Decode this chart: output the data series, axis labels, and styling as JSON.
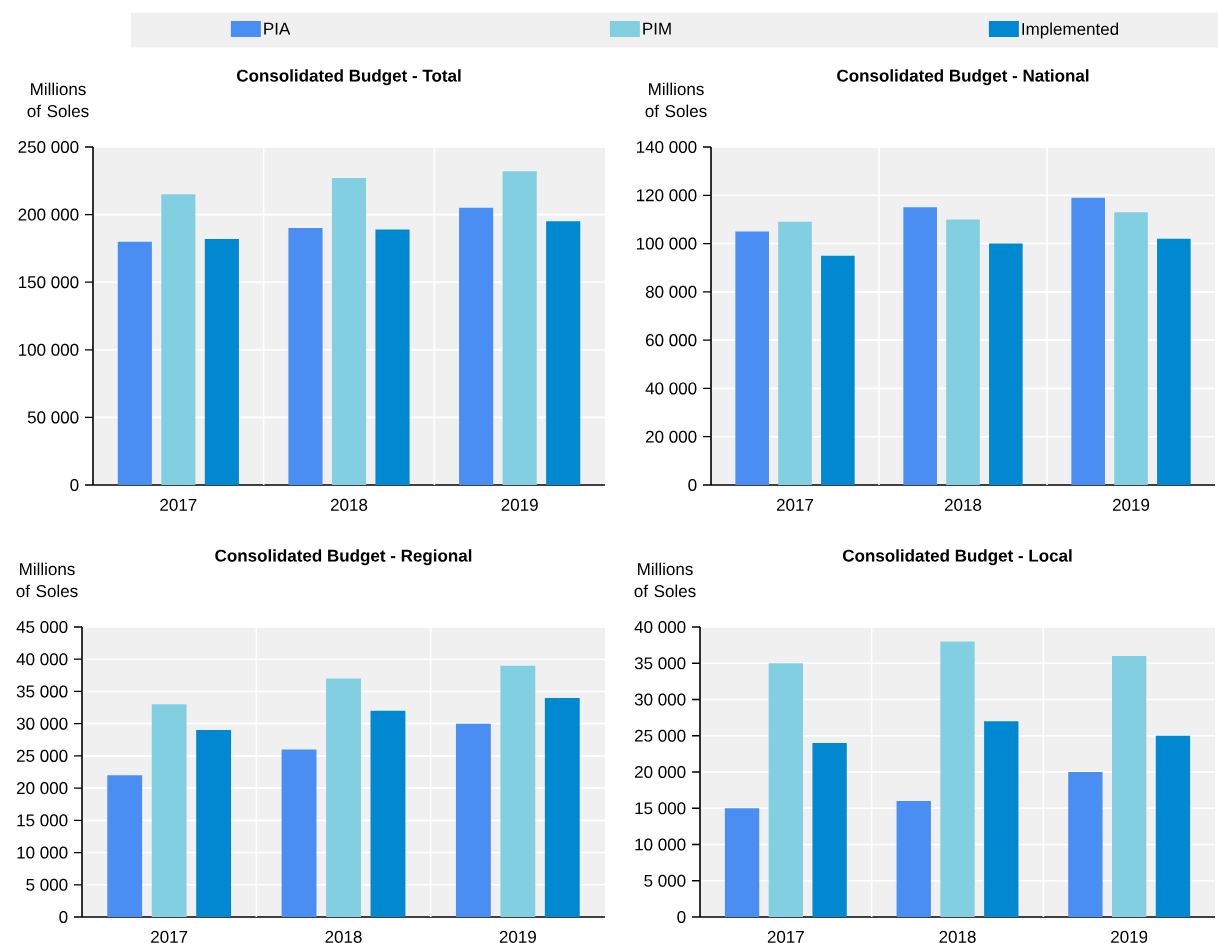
{
  "chart_data": [
    {
      "type": "bar",
      "title": "Consolidated Budget - Total",
      "ylabel": "Millions of Soles",
      "categories": [
        "2017",
        "2018",
        "2019"
      ],
      "series": [
        {
          "name": "PIA",
          "color": "#4a8ef4",
          "values": [
            180000,
            190000,
            205000
          ]
        },
        {
          "name": "PIM",
          "color": "#83cfe2",
          "values": [
            215000,
            227000,
            232000
          ]
        },
        {
          "name": "Implemented",
          "color": "#0088d1",
          "values": [
            182000,
            189000,
            195000
          ]
        }
      ],
      "ylim": [
        0,
        250000
      ],
      "yticks": [
        0,
        {
          "value": 50000,
          "label": "50 000"
        },
        {
          "value": 100000,
          "label": "100 000"
        },
        {
          "value": 150000,
          "label": "150 000"
        },
        {
          "value": 200000,
          "label": "200 000"
        },
        {
          "value": 250000,
          "label": "250 000"
        }
      ],
      "grid": "y",
      "legend": "top"
    },
    {
      "type": "bar",
      "title": "Consolidated Budget - National",
      "ylabel": "Millions of Soles",
      "categories": [
        "2017",
        "2018",
        "2019"
      ],
      "series": [
        {
          "color": "#4a8ef4",
          "values": [
            105000,
            115000,
            119000
          ]
        },
        {
          "color": "#83cfe2",
          "values": [
            109000,
            110000,
            113000
          ]
        },
        {
          "color": "#0088d1",
          "values": [
            95000,
            100000,
            102000
          ]
        }
      ],
      "ylim": [
        0,
        140000
      ],
      "yticks": [
        0,
        {
          "value": 20000,
          "label": "20 000"
        },
        {
          "value": 40000,
          "label": "40 000"
        },
        {
          "value": 60000,
          "label": "60 000"
        },
        {
          "value": 80000,
          "label": "80 000"
        },
        {
          "value": 100000,
          "label": "100 000"
        },
        {
          "value": 120000,
          "label": "120 000"
        },
        {
          "value": 140000,
          "label": "140 000"
        }
      ],
      "grid": "y"
    },
    {
      "type": "bar",
      "title": "Consolidated Budget - Regional",
      "ylabel": "Millions of Soles",
      "categories": [
        "2017",
        "2018",
        "2019"
      ],
      "series": [
        {
          "color": "#4a8ef4",
          "values": [
            22000,
            26000,
            30000
          ]
        },
        {
          "color": "#83cfe2",
          "values": [
            33000,
            37000,
            39000
          ]
        },
        {
          "color": "#0088d1",
          "values": [
            29000,
            32000,
            34000
          ]
        }
      ],
      "ylim": [
        0,
        45000
      ],
      "yticks": [
        0,
        {
          "value": 5000,
          "label": "5 000"
        },
        {
          "value": 10000,
          "label": "10 000"
        },
        {
          "value": 15000,
          "label": "15 000"
        },
        {
          "value": 20000,
          "label": "20 000"
        },
        {
          "value": 25000,
          "label": "25 000"
        },
        {
          "value": 30000,
          "label": "30 000"
        },
        {
          "value": 35000,
          "label": "35 000"
        },
        {
          "value": 40000,
          "label": "40 000"
        },
        {
          "value": 45000,
          "label": "45 000"
        }
      ],
      "grid": "y"
    },
    {
      "type": "bar",
      "title": "Consolidated Budget - Local",
      "ylabel": "Millions of Soles",
      "categories": [
        "2017",
        "2018",
        "2019"
      ],
      "series": [
        {
          "color": "#4a8ef4",
          "values": [
            15000,
            16000,
            20000
          ]
        },
        {
          "color": "#83cfe2",
          "values": [
            35000,
            38000,
            36000
          ]
        },
        {
          "color": "#0088d1",
          "values": [
            24000,
            27000,
            25000
          ]
        }
      ],
      "ylim": [
        0,
        40000
      ],
      "yticks": [
        0,
        {
          "value": 5000,
          "label": "5 000"
        },
        {
          "value": 10000,
          "label": "10 000"
        },
        {
          "value": 15000,
          "label": "15 000"
        },
        {
          "value": 20000,
          "label": "20 000"
        },
        {
          "value": 25000,
          "label": "25 000"
        },
        {
          "value": 30000,
          "label": "30 000"
        },
        {
          "value": 35000,
          "label": "35 000"
        },
        {
          "value": 40000,
          "label": "40 000"
        }
      ],
      "grid": "y"
    }
  ]
}
